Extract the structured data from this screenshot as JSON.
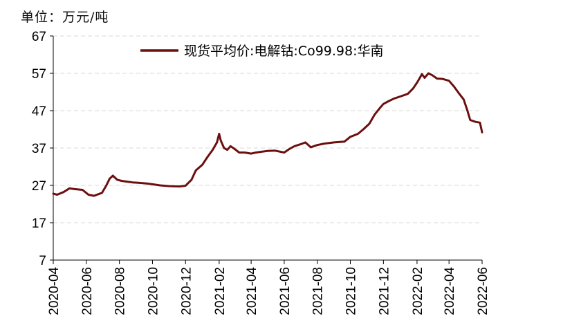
{
  "unit_label": "单位：万元/吨",
  "chart_data": {
    "type": "line",
    "title": "",
    "xlabel": "",
    "ylabel": "",
    "ylim": [
      7,
      67
    ],
    "yticks": [
      7,
      17,
      27,
      37,
      47,
      57,
      67
    ],
    "xlim": [
      "2020-04-01",
      "2022-06-01"
    ],
    "xticks": [
      "2020-04",
      "2020-06",
      "2020-08",
      "2020-10",
      "2020-12",
      "2021-02",
      "2021-04",
      "2021-06",
      "2021-08",
      "2021-10",
      "2021-12",
      "2022-02",
      "2022-04",
      "2022-06"
    ],
    "grid": "horizontal-dashed",
    "legend_position": "top-right",
    "series": [
      {
        "name": "现货平均价:电解钴:Co99.98:华南",
        "color": "#6b0f0f",
        "x": [
          "2020-04-01",
          "2020-04-08",
          "2020-04-20",
          "2020-05-01",
          "2020-05-10",
          "2020-05-25",
          "2020-06-05",
          "2020-06-15",
          "2020-06-30",
          "2020-07-08",
          "2020-07-14",
          "2020-07-20",
          "2020-07-28",
          "2020-08-05",
          "2020-08-15",
          "2020-08-25",
          "2020-09-05",
          "2020-09-20",
          "2020-10-01",
          "2020-10-15",
          "2020-11-01",
          "2020-11-20",
          "2020-12-01",
          "2020-12-05",
          "2020-12-12",
          "2020-12-20",
          "2021-01-01",
          "2021-01-10",
          "2021-01-20",
          "2021-01-28",
          "2021-02-01",
          "2021-02-04",
          "2021-02-10",
          "2021-02-16",
          "2021-02-22",
          "2021-03-01",
          "2021-03-10",
          "2021-03-20",
          "2021-04-01",
          "2021-04-10",
          "2021-04-20",
          "2021-05-01",
          "2021-05-15",
          "2021-06-01",
          "2021-06-10",
          "2021-06-20",
          "2021-07-01",
          "2021-07-10",
          "2021-07-20",
          "2021-08-01",
          "2021-08-15",
          "2021-09-01",
          "2021-09-20",
          "2021-10-01",
          "2021-10-15",
          "2021-10-25",
          "2021-11-05",
          "2021-11-15",
          "2021-11-25",
          "2021-12-01",
          "2021-12-10",
          "2021-12-20",
          "2022-01-01",
          "2022-01-15",
          "2022-01-25",
          "2022-02-01",
          "2022-02-05",
          "2022-02-10",
          "2022-02-15",
          "2022-02-22",
          "2022-03-01",
          "2022-03-10",
          "2022-03-20",
          "2022-04-01",
          "2022-04-10",
          "2022-04-20",
          "2022-04-28",
          "2022-05-05",
          "2022-05-10",
          "2022-05-20",
          "2022-05-28",
          "2022-06-01"
        ],
        "values": [
          24.8,
          24.5,
          25.2,
          26.2,
          26.0,
          25.8,
          24.5,
          24.2,
          25.0,
          27.0,
          28.8,
          29.6,
          28.5,
          28.2,
          28.0,
          27.8,
          27.7,
          27.5,
          27.3,
          27.0,
          26.8,
          26.7,
          26.9,
          27.5,
          28.5,
          31.0,
          32.5,
          34.5,
          36.5,
          38.5,
          40.8,
          39.0,
          37.0,
          36.5,
          37.5,
          36.8,
          35.8,
          35.8,
          35.5,
          35.8,
          36.0,
          36.2,
          36.3,
          35.8,
          36.7,
          37.5,
          38.0,
          38.5,
          37.2,
          37.8,
          38.2,
          38.5,
          38.7,
          40.0,
          40.8,
          42.0,
          43.5,
          46.0,
          47.8,
          48.8,
          49.5,
          50.2,
          50.8,
          51.5,
          53.0,
          54.5,
          55.5,
          56.8,
          55.8,
          57.0,
          56.5,
          55.6,
          55.5,
          55.0,
          53.5,
          51.5,
          50.0,
          47.0,
          44.5,
          44.0,
          43.8,
          41.2
        ]
      }
    ]
  }
}
